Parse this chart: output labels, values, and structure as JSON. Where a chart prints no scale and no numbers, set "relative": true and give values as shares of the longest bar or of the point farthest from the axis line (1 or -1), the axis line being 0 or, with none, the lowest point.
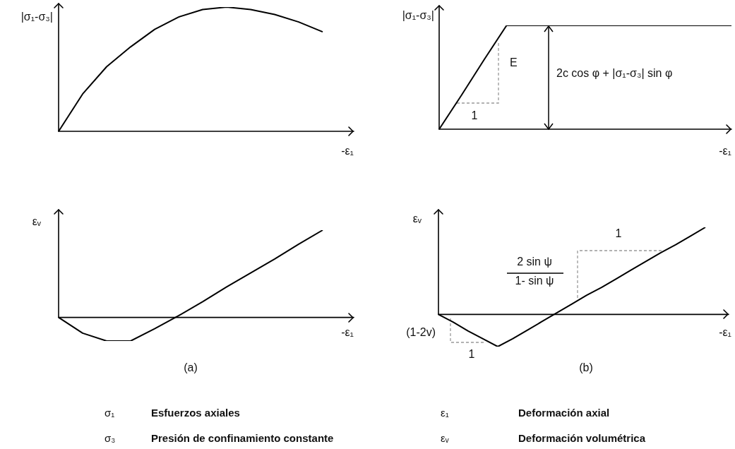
{
  "chart_data": [
    {
      "type": "line",
      "relative": true,
      "marker": "none",
      "line_style": "solid",
      "ylabel": "|σ₁-σ₃|",
      "xlabel": "-ε₁",
      "categories": [
        null,
        null,
        null,
        null,
        null,
        null,
        null,
        null,
        null,
        null,
        null,
        null
      ],
      "series": [
        {
          "color": "#000000",
          "values": [
            0,
            0.3,
            0.52,
            0.68,
            0.82,
            0.92,
            0.98,
            1,
            0.98,
            0.94,
            0.88,
            0.8
          ]
        }
      ]
    },
    {
      "type": "line",
      "relative": true,
      "marker": "none",
      "line_style": "solid",
      "ylabel": "|σ₁-σ₃|",
      "xlabel": "-ε₁",
      "categories": [
        null,
        null,
        null,
        null,
        null,
        null,
        null,
        null,
        null,
        null,
        null,
        null,
        null,
        null
      ],
      "series": [
        {
          "color": "#000000",
          "values": [
            0,
            0.33,
            0.67,
            1,
            1,
            1,
            1,
            1,
            1,
            1,
            1,
            1,
            1,
            1
          ]
        }
      ],
      "annotations": [
        "E",
        "1",
        "2c cos φ + |σ₁-σ₃| sin φ"
      ]
    },
    {
      "type": "line",
      "relative": true,
      "marker": "none",
      "line_style": "solid",
      "ylabel": "εᵥ",
      "xlabel": "-ε₁",
      "categories": [
        null,
        null,
        null,
        null,
        null,
        null,
        null,
        null,
        null,
        null,
        null,
        null
      ],
      "series": [
        {
          "color": "#000000",
          "values": [
            0,
            -0.18,
            -0.27,
            -0.27,
            -0.13,
            0.02,
            0.18,
            0.35,
            0.51,
            0.67,
            0.84,
            1
          ]
        }
      ],
      "annotations": [
        "(a)"
      ]
    },
    {
      "type": "line",
      "relative": true,
      "marker": "none",
      "line_style": "solid",
      "ylabel": "εᵥ",
      "xlabel": "-ε₁",
      "categories": [
        null,
        null,
        null,
        null,
        null,
        null,
        null,
        null,
        null,
        null,
        null,
        null,
        null,
        null,
        null,
        null,
        null,
        null,
        null
      ],
      "series": [
        {
          "color": "#000000",
          "values": [
            0,
            -0.09,
            -0.19,
            -0.28,
            -0.37,
            -0.28,
            -0.18,
            -0.08,
            0.02,
            0.12,
            0.22,
            0.31,
            0.41,
            0.51,
            0.61,
            0.71,
            0.8,
            0.9,
            1
          ]
        }
      ],
      "annotations": [
        "2 sin ψ",
        "1- sin ψ",
        "1",
        "(1-2v)",
        "1",
        "(b)"
      ]
    },
    {
      "type": "other",
      "annotations": [
        "σ₁",
        "Esfuerzos axiales",
        "ε₁",
        "Deformación axial",
        "σ₃",
        "Presión de confinamiento constante",
        "εᵥ",
        "Deformación volumétrica"
      ]
    }
  ]
}
